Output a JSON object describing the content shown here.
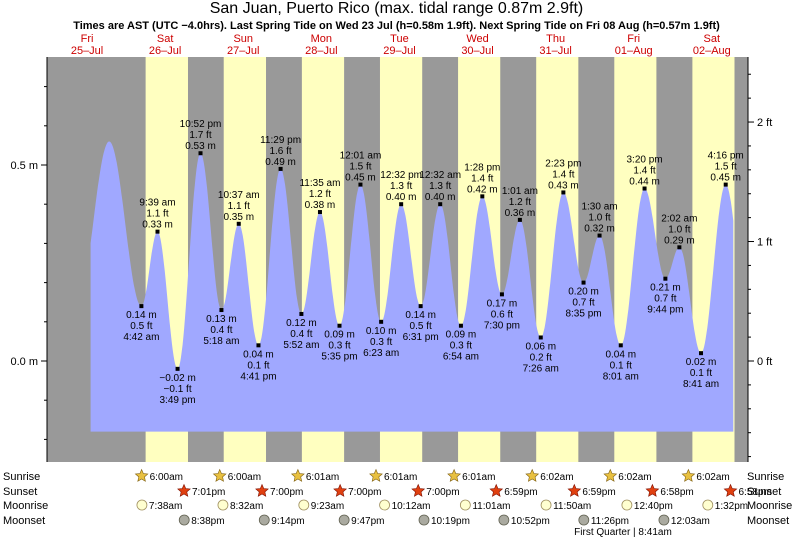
{
  "title": "San Juan, Puerto Rico (max. tidal range 0.87m 2.9ft)",
  "subtitle": "Times are AST (UTC −4.0hrs). Last Spring Tide on Wed 23 Jul (h=0.58m 1.9ft). Next Spring Tide on Fri 08 Aug (h=0.57m 1.9ft)",
  "colors": {
    "water": "#a0a8ff",
    "day": "#ffffc0",
    "night": "#999999",
    "sun": "#e8c040",
    "sunset": "#e04010",
    "moonrise": "#ffffd0",
    "moonset": "#aaaaa0"
  },
  "chart_data": {
    "type": "area",
    "title": "San Juan, Puerto Rico (max. tidal range 0.87m 2.9ft)",
    "ylim_m": [
      -0.25,
      0.75
    ],
    "y_ticks_m": [
      "0.0 m",
      "0.5 m"
    ],
    "y_ticks_ft": [
      "0 ft",
      "1 ft",
      "2 ft"
    ],
    "days": [
      {
        "name": "Fri",
        "date": "25–Jul"
      },
      {
        "name": "Sat",
        "date": "26–Jul"
      },
      {
        "name": "Sun",
        "date": "27–Jul"
      },
      {
        "name": "Mon",
        "date": "28–Jul"
      },
      {
        "name": "Tue",
        "date": "29–Jul"
      },
      {
        "name": "Wed",
        "date": "30–Jul"
      },
      {
        "name": "Thu",
        "date": "31–Jul"
      },
      {
        "name": "Fri",
        "date": "01–Aug"
      },
      {
        "name": "Sat",
        "date": "02–Aug"
      }
    ],
    "tides": [
      {
        "t": 18.8,
        "h": 0.56,
        "type": "high",
        "m": "",
        "ft": "",
        "time": ""
      },
      {
        "t": 28.7,
        "h": 0.14,
        "type": "low",
        "m": "0.14 m",
        "ft": "0.5 ft",
        "time": "4:42 am"
      },
      {
        "t": 33.65,
        "h": 0.33,
        "type": "high",
        "m": "0.33 m",
        "ft": "1.1 ft",
        "time": "9:39 am"
      },
      {
        "t": 39.82,
        "h": -0.02,
        "type": "low",
        "m": "−0.02 m",
        "ft": "−0.1 ft",
        "time": "3:49 pm"
      },
      {
        "t": 46.87,
        "h": 0.53,
        "type": "high",
        "m": "0.53 m",
        "ft": "1.7 ft",
        "time": "10:52 pm"
      },
      {
        "t": 53.3,
        "h": 0.13,
        "type": "low",
        "m": "0.13 m",
        "ft": "0.4 ft",
        "time": "5:18 am"
      },
      {
        "t": 58.62,
        "h": 0.35,
        "type": "high",
        "m": "0.35 m",
        "ft": "1.1 ft",
        "time": "10:37 am"
      },
      {
        "t": 64.68,
        "h": 0.04,
        "type": "low",
        "m": "0.04 m",
        "ft": "0.1 ft",
        "time": "4:41 pm"
      },
      {
        "t": 71.48,
        "h": 0.49,
        "type": "high",
        "m": "0.49 m",
        "ft": "1.6 ft",
        "time": "11:29 pm"
      },
      {
        "t": 77.87,
        "h": 0.12,
        "type": "low",
        "m": "0.12 m",
        "ft": "0.4 ft",
        "time": "5:52 am"
      },
      {
        "t": 83.58,
        "h": 0.38,
        "type": "high",
        "m": "0.38 m",
        "ft": "1.2 ft",
        "time": "11:35 am"
      },
      {
        "t": 89.58,
        "h": 0.09,
        "type": "low",
        "m": "0.09 m",
        "ft": "0.3 ft",
        "time": "5:35 pm"
      },
      {
        "t": 96.02,
        "h": 0.45,
        "type": "high",
        "m": "0.45 m",
        "ft": "1.5 ft",
        "time": "12:01 am"
      },
      {
        "t": 102.38,
        "h": 0.1,
        "type": "low",
        "m": "0.10 m",
        "ft": "0.3 ft",
        "time": "6:23 am"
      },
      {
        "t": 108.53,
        "h": 0.4,
        "type": "high",
        "m": "0.40 m",
        "ft": "1.3 ft",
        "time": "12:32 pm"
      },
      {
        "t": 114.52,
        "h": 0.14,
        "type": "low",
        "m": "0.14 m",
        "ft": "0.5 ft",
        "time": "6:31 pm"
      },
      {
        "t": 120.53,
        "h": 0.4,
        "type": "high",
        "m": "0.40 m",
        "ft": "1.3 ft",
        "time": "12:32 am"
      },
      {
        "t": 126.9,
        "h": 0.09,
        "type": "low",
        "m": "0.09 m",
        "ft": "0.3 ft",
        "time": "6:54 am"
      },
      {
        "t": 133.47,
        "h": 0.42,
        "type": "high",
        "m": "0.42 m",
        "ft": "1.4 ft",
        "time": "1:28 pm"
      },
      {
        "t": 139.5,
        "h": 0.17,
        "type": "low",
        "m": "0.17 m",
        "ft": "0.6 ft",
        "time": "7:30 pm"
      },
      {
        "t": 145.02,
        "h": 0.36,
        "type": "high",
        "m": "0.36 m",
        "ft": "1.2 ft",
        "time": "1:01 am"
      },
      {
        "t": 151.43,
        "h": 0.06,
        "type": "low",
        "m": "0.06 m",
        "ft": "0.2 ft",
        "time": "7:26 am"
      },
      {
        "t": 158.38,
        "h": 0.43,
        "type": "high",
        "m": "0.43 m",
        "ft": "1.4 ft",
        "time": "2:23 pm"
      },
      {
        "t": 164.58,
        "h": 0.2,
        "type": "low",
        "m": "0.20 m",
        "ft": "0.7 ft",
        "time": "8:35 pm"
      },
      {
        "t": 169.5,
        "h": 0.32,
        "type": "high",
        "m": "0.32 m",
        "ft": "1.0 ft",
        "time": "1:30 am"
      },
      {
        "t": 176.02,
        "h": 0.04,
        "type": "low",
        "m": "0.04 m",
        "ft": "0.1 ft",
        "time": "8:01 am"
      },
      {
        "t": 183.33,
        "h": 0.44,
        "type": "high",
        "m": "0.44 m",
        "ft": "1.4 ft",
        "time": "3:20 pm"
      },
      {
        "t": 189.73,
        "h": 0.21,
        "type": "low",
        "m": "0.21 m",
        "ft": "0.7 ft",
        "time": "9:44 pm"
      },
      {
        "t": 194.03,
        "h": 0.29,
        "type": "high",
        "m": "0.29 m",
        "ft": "1.0 ft",
        "time": "2:02 am"
      },
      {
        "t": 200.68,
        "h": 0.02,
        "type": "low",
        "m": "0.02 m",
        "ft": "0.1 ft",
        "time": "8:41 am"
      },
      {
        "t": 208.27,
        "h": 0.45,
        "type": "high",
        "m": "0.45 m",
        "ft": "1.5 ft",
        "time": "4:16 pm"
      }
    ],
    "sunrise": [
      {
        "t": 30.0,
        "label": "6:00am"
      },
      {
        "t": 54.0,
        "label": "6:00am"
      },
      {
        "t": 78.02,
        "label": "6:01am"
      },
      {
        "t": 102.02,
        "label": "6:01am"
      },
      {
        "t": 126.02,
        "label": "6:01am"
      },
      {
        "t": 150.03,
        "label": "6:02am"
      },
      {
        "t": 174.03,
        "label": "6:02am"
      },
      {
        "t": 198.03,
        "label": "6:02am"
      }
    ],
    "sunset": [
      {
        "t": 43.02,
        "label": "7:01pm"
      },
      {
        "t": 67.0,
        "label": "7:00pm"
      },
      {
        "t": 91.0,
        "label": "7:00pm"
      },
      {
        "t": 115.0,
        "label": "7:00pm"
      },
      {
        "t": 138.98,
        "label": "6:59pm"
      },
      {
        "t": 162.98,
        "label": "6:59pm"
      },
      {
        "t": 186.97,
        "label": "6:58pm"
      },
      {
        "t": 210.97,
        "label": "6:58pm"
      }
    ],
    "moonrise": [
      {
        "t": 31.63,
        "label": "7:38am"
      },
      {
        "t": 56.53,
        "label": "8:32am"
      },
      {
        "t": 81.38,
        "label": "9:23am"
      },
      {
        "t": 106.2,
        "label": "10:12am"
      },
      {
        "t": 131.02,
        "label": "11:01am"
      },
      {
        "t": 155.83,
        "label": "11:50am"
      },
      {
        "t": 180.67,
        "label": "12:40pm"
      },
      {
        "t": 205.53,
        "label": "1:32pm"
      }
    ],
    "moonset": [
      {
        "t": 44.63,
        "label": "8:38pm"
      },
      {
        "t": 69.23,
        "label": "9:14pm"
      },
      {
        "t": 93.78,
        "label": "9:47pm"
      },
      {
        "t": 118.32,
        "label": "10:19pm"
      },
      {
        "t": 142.87,
        "label": "10:52pm"
      },
      {
        "t": 167.43,
        "label": "11:26pm"
      },
      {
        "t": 192.05,
        "label": "12:03am"
      }
    ],
    "row_labels": [
      "Sunrise",
      "Sunset",
      "Moonrise",
      "Moonset"
    ],
    "moon_phase": {
      "t": 176.7,
      "label": "First Quarter | 8:41am"
    }
  }
}
